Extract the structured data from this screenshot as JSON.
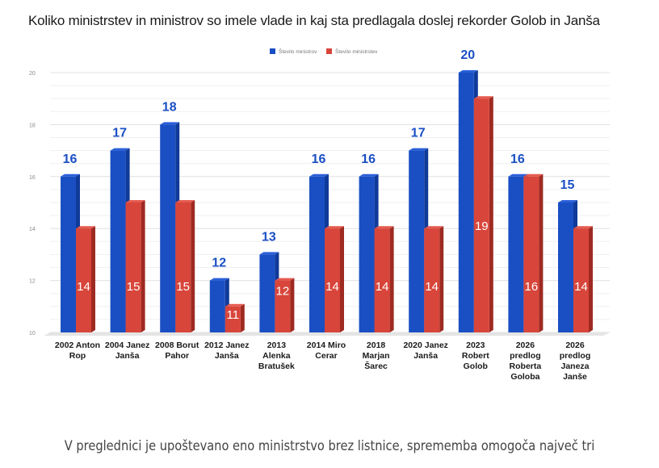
{
  "chart_data": {
    "type": "bar",
    "title": "Koliko ministrstev in ministrov so imele vlade in kaj sta predlagala doslej rekorder Golob in Janša",
    "xlabel": "",
    "ylabel": "",
    "ylim": [
      10,
      20
    ],
    "yticks": [
      "10",
      "12",
      "14",
      "16",
      "18",
      "20"
    ],
    "grid": true,
    "legend_position": "top-center",
    "categories": [
      [
        "2002 Anton",
        "Rop"
      ],
      [
        "2004 Janez",
        "Janša"
      ],
      [
        "2008 Borut",
        "Pahor"
      ],
      [
        "2012 Janez",
        "Janša"
      ],
      [
        "2013",
        "Alenka",
        "Bratušek"
      ],
      [
        "2014 Miro",
        "Cerar"
      ],
      [
        "2018",
        "Marjan",
        "Šarec"
      ],
      [
        "2020 Janez",
        "Janša"
      ],
      [
        "2023",
        "Robert",
        "Golob"
      ],
      [
        "2026",
        "predlog",
        "Roberta",
        "Goloba"
      ],
      [
        "2026",
        "predlog",
        "Janeza",
        "Janše"
      ]
    ],
    "series": [
      {
        "name": "Število ministrov",
        "color": "#1a4fc4",
        "values": [
          16,
          17,
          18,
          12,
          13,
          16,
          16,
          17,
          20,
          16,
          15
        ]
      },
      {
        "name": "Število ministrstev",
        "color": "#d8453a",
        "values": [
          14,
          15,
          15,
          11,
          12,
          14,
          14,
          14,
          19,
          16,
          14
        ]
      }
    ]
  },
  "caption": "V preglednici je upoštevano eno ministrstvo brez listnice, sprememba omogoča največ tri"
}
